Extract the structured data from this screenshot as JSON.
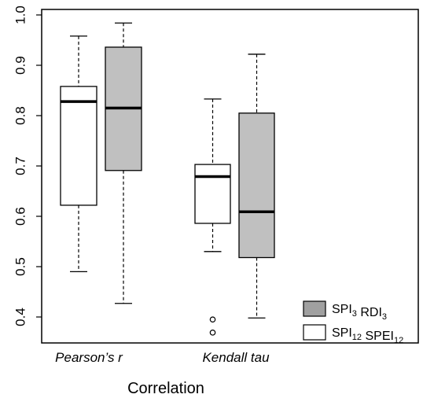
{
  "chart_data": {
    "type": "boxplot",
    "title": "",
    "xlabel": "Correlation",
    "ylabel": "",
    "ylim": [
      0.35,
      1.0
    ],
    "yticks": [
      "0.4",
      "0.5",
      "0.6",
      "0.7",
      "0.8",
      "0.9",
      "1.0"
    ],
    "ytick_values": [
      0.4,
      0.5,
      0.6,
      0.7,
      0.8,
      0.9,
      1.0
    ],
    "categories": [
      "Pearson’s r",
      "Kendall tau"
    ],
    "series": [
      {
        "id": "spi12_spei12",
        "fill": "#ffffff",
        "stats": [
          {
            "category": "Pearson’s r",
            "min": 0.49,
            "q1": 0.622,
            "median": 0.828,
            "q3": 0.858,
            "max": 0.958,
            "outliers": []
          },
          {
            "category": "Kendall tau",
            "min": 0.53,
            "q1": 0.586,
            "median": 0.679,
            "q3": 0.703,
            "max": 0.833,
            "outliers": [
              0.395,
              0.369
            ]
          }
        ]
      },
      {
        "id": "spi3_rdi3",
        "fill": "#c0c0c0",
        "stats": [
          {
            "category": "Pearson’s r",
            "min": 0.427,
            "q1": 0.691,
            "median": 0.815,
            "q3": 0.936,
            "max": 0.984,
            "outliers": []
          },
          {
            "category": "Kendall tau",
            "min": 0.398,
            "q1": 0.518,
            "median": 0.609,
            "q3": 0.805,
            "max": 0.922,
            "outliers": []
          }
        ]
      }
    ],
    "legend": {
      "position": "bottom-right",
      "entries": [
        {
          "series": "spi3_rdi3",
          "fill": "#a0a0a0",
          "parts": [
            {
              "t": "SPI",
              "sub": "3"
            },
            {
              "t": " RDI",
              "sub": "3"
            }
          ]
        },
        {
          "series": "spi12_spei12",
          "fill": "#ffffff",
          "parts": [
            {
              "t": "SPI",
              "sub": "12"
            },
            {
              "t": " SPEI",
              "sub": "12"
            }
          ]
        }
      ]
    }
  }
}
